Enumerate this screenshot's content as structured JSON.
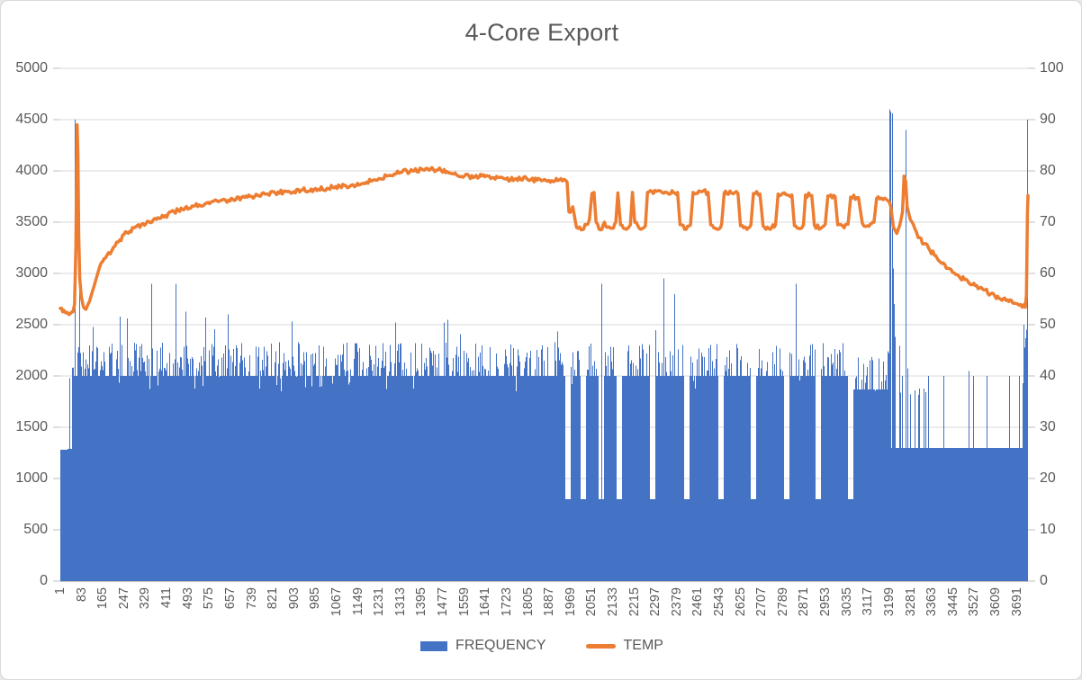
{
  "window": {
    "title": "4-Core Export"
  },
  "chart_data": {
    "type": "combo",
    "title": "4-Core Export",
    "grid": true,
    "legend_position": "bottom",
    "x_range": [
      1,
      3734
    ],
    "x_tick_labels": [
      1,
      83,
      165,
      247,
      329,
      411,
      493,
      575,
      657,
      739,
      821,
      903,
      985,
      1067,
      1149,
      1231,
      1313,
      1395,
      1477,
      1559,
      1641,
      1723,
      1805,
      1887,
      1969,
      2051,
      2133,
      2215,
      2297,
      2379,
      2461,
      2543,
      2625,
      2707,
      2789,
      2871,
      2953,
      3035,
      3117,
      3199,
      3281,
      3363,
      3445,
      3527,
      3609,
      3691
    ],
    "left_axis": {
      "title": "",
      "min": 0,
      "max": 5000,
      "step": 500,
      "tick_labels": [
        0,
        500,
        1000,
        1500,
        2000,
        2500,
        3000,
        3500,
        4000,
        4500,
        5000
      ]
    },
    "right_axis": {
      "title": "",
      "min": 0,
      "max": 100,
      "step": 10,
      "tick_labels": [
        0,
        10,
        20,
        30,
        40,
        50,
        60,
        70,
        80,
        90,
        100
      ]
    },
    "series": [
      {
        "name": "FREQUENCY",
        "type": "bar",
        "axis": "left",
        "color": "#4472C4",
        "description": "Dense per-sample CPU frequency bars (MHz). Encoded as base-level segments with spiky texture, periodic throttle dips to 800, and explicit major spikes.",
        "segments": [
          {
            "from": 1,
            "to": 29,
            "base": 1280,
            "p_hi": 0,
            "hi": [
              0,
              0
            ],
            "p_mid": 0,
            "mid": [
              0,
              0
            ],
            "p_notch": 0,
            "notch": 0
          },
          {
            "from": 30,
            "to": 45,
            "base": 1290,
            "p_hi": 0,
            "hi": [
              0,
              0
            ],
            "p_mid": 0,
            "mid": [
              0,
              0
            ],
            "p_notch": 0,
            "notch": 0
          },
          {
            "from": 46,
            "to": 1958,
            "base": 2000,
            "p_hi": 0.48,
            "hi": [
              40,
              330
            ],
            "p_mid": 0.032,
            "mid": [
              400,
              650
            ],
            "p_notch": 0.04,
            "notch": 150
          },
          {
            "from": 1959,
            "to": 3054,
            "base": 2000,
            "p_hi": 0.42,
            "hi": [
              40,
              320
            ],
            "p_mid": 0.022,
            "mid": [
              400,
              620
            ],
            "p_notch": 0.03,
            "notch": 140
          },
          {
            "from": 3055,
            "to": 3193,
            "base": 1870,
            "p_hi": 0.4,
            "hi": [
              60,
              340
            ],
            "p_mid": 0.015,
            "mid": [
              360,
              430
            ],
            "p_notch": 0.02,
            "notch": 100
          },
          {
            "from": 3194,
            "to": 3232,
            "base": 1300,
            "p_hi": 0.55,
            "hi": [
              400,
              1300
            ],
            "p_mid": 0.12,
            "mid": [
              1300,
              1700
            ],
            "p_notch": 0,
            "notch": 0
          },
          {
            "from": 3233,
            "to": 3340,
            "base": 1300,
            "p_hi": 0.2,
            "hi": [
              500,
              800
            ],
            "p_mid": 0.05,
            "mid": [
              900,
              1300
            ],
            "p_notch": 0,
            "notch": 0
          },
          {
            "from": 3341,
            "to": 3714,
            "base": 1300,
            "p_hi": 0.015,
            "hi": [
              600,
              750
            ],
            "p_mid": 0,
            "mid": [
              0,
              0
            ],
            "p_notch": 0,
            "notch": 0
          },
          {
            "from": 3715,
            "to": 3734,
            "base": 1300,
            "p_hi": 0.35,
            "hi": [
              500,
              800
            ],
            "p_mid": 0.15,
            "mid": [
              900,
              1200
            ],
            "p_notch": 0,
            "notch": 0
          }
        ],
        "major_spikes": [
          [
            36,
            1980
          ],
          [
            58,
            4500
          ],
          [
            77,
            3600
          ],
          [
            129,
            2480
          ],
          [
            233,
            2580
          ],
          [
            258,
            2560
          ],
          [
            355,
            2900
          ],
          [
            446,
            2900
          ],
          [
            563,
            2570
          ],
          [
            650,
            2600
          ],
          [
            1483,
            2520
          ],
          [
            1495,
            2550
          ],
          [
            2090,
            2900
          ],
          [
            2330,
            2950
          ],
          [
            2372,
            2800
          ],
          [
            2841,
            2900
          ],
          [
            3200,
            4600
          ],
          [
            3205,
            4580
          ],
          [
            3210,
            4560
          ],
          [
            3214,
            3050
          ],
          [
            3218,
            2700
          ],
          [
            3262,
            4400
          ],
          [
            3350,
            2000
          ],
          [
            3409,
            1980
          ],
          [
            3506,
            2050
          ],
          [
            3575,
            2000
          ],
          [
            3662,
            2000
          ],
          [
            3700,
            2000
          ],
          [
            3718,
            2500
          ],
          [
            3726,
            2100
          ],
          [
            3730,
            2450
          ],
          [
            3733,
            4500
          ]
        ],
        "dips": {
          "value": 800,
          "width": 22,
          "positions": [
            1960,
            2019,
            2088,
            2158,
            2286,
            2418,
            2550,
            2675,
            2804,
            2925,
            3050
          ]
        }
      },
      {
        "name": "TEMP",
        "type": "line",
        "axis": "right",
        "color": "#ED7D31",
        "stroke_width": 3.5,
        "noise": 0.45,
        "points": [
          [
            1,
            53.2
          ],
          [
            15,
            52.8
          ],
          [
            28,
            52.4
          ],
          [
            40,
            52.2
          ],
          [
            50,
            52.5
          ],
          [
            56,
            54
          ],
          [
            61,
            65
          ],
          [
            64,
            80
          ],
          [
            66,
            89
          ],
          [
            69,
            83
          ],
          [
            72,
            68
          ],
          [
            76,
            59
          ],
          [
            82,
            55.5
          ],
          [
            90,
            53.5
          ],
          [
            100,
            53
          ],
          [
            108,
            54
          ],
          [
            119,
            55.5
          ],
          [
            134,
            58
          ],
          [
            154,
            61.5
          ],
          [
            175,
            63
          ],
          [
            200,
            64.5
          ],
          [
            230,
            66.5
          ],
          [
            258,
            68
          ],
          [
            290,
            69
          ],
          [
            320,
            69.7
          ],
          [
            360,
            70.5
          ],
          [
            400,
            71
          ],
          [
            440,
            72
          ],
          [
            472,
            72.5
          ],
          [
            520,
            73.2
          ],
          [
            560,
            73.6
          ],
          [
            610,
            74
          ],
          [
            650,
            74.3
          ],
          [
            700,
            74.8
          ],
          [
            740,
            75
          ],
          [
            790,
            75.5
          ],
          [
            830,
            75.7
          ],
          [
            880,
            76
          ],
          [
            930,
            76.2
          ],
          [
            980,
            76.4
          ],
          [
            1030,
            76.6
          ],
          [
            1080,
            77
          ],
          [
            1130,
            77.3
          ],
          [
            1170,
            77.6
          ],
          [
            1200,
            78
          ],
          [
            1230,
            78.5
          ],
          [
            1260,
            79
          ],
          [
            1290,
            79.4
          ],
          [
            1320,
            79.8
          ],
          [
            1360,
            80
          ],
          [
            1400,
            80.2
          ],
          [
            1440,
            80.3
          ],
          [
            1470,
            80.1
          ],
          [
            1500,
            79.6
          ],
          [
            1530,
            79.2
          ],
          [
            1560,
            79
          ],
          [
            1600,
            78.9
          ],
          [
            1650,
            79
          ],
          [
            1690,
            78.7
          ],
          [
            1720,
            78.4
          ],
          [
            1760,
            78.5
          ],
          [
            1800,
            78.5
          ],
          [
            1840,
            78.2
          ],
          [
            1880,
            78
          ],
          [
            1920,
            78.1
          ],
          [
            1950,
            78.2
          ],
          [
            1956,
            77.8
          ],
          [
            1963,
            72
          ],
          [
            1978,
            73
          ],
          [
            1992,
            69
          ],
          [
            2010,
            68.5
          ],
          [
            2030,
            69.5
          ],
          [
            2042,
            70.5
          ],
          [
            2052,
            75.6
          ],
          [
            2060,
            75.8
          ],
          [
            2068,
            70
          ],
          [
            2085,
            68.5
          ],
          [
            2100,
            70
          ],
          [
            2112,
            69
          ],
          [
            2130,
            68.8
          ],
          [
            2144,
            70
          ],
          [
            2152,
            75.7
          ],
          [
            2162,
            69.5
          ],
          [
            2185,
            68.6
          ],
          [
            2200,
            69.5
          ],
          [
            2208,
            75.8
          ],
          [
            2217,
            70
          ],
          [
            2240,
            68.6
          ],
          [
            2258,
            69.3
          ],
          [
            2266,
            75.8
          ],
          [
            2300,
            76
          ],
          [
            2340,
            75.8
          ],
          [
            2382,
            75.8
          ],
          [
            2392,
            69.5
          ],
          [
            2415,
            68.6
          ],
          [
            2432,
            69.5
          ],
          [
            2442,
            75.8
          ],
          [
            2470,
            76
          ],
          [
            2500,
            75.8
          ],
          [
            2510,
            69.5
          ],
          [
            2535,
            68.6
          ],
          [
            2552,
            69.5
          ],
          [
            2562,
            75.7
          ],
          [
            2590,
            75.7
          ],
          [
            2615,
            75.6
          ],
          [
            2625,
            69.3
          ],
          [
            2650,
            68.6
          ],
          [
            2665,
            69.5
          ],
          [
            2675,
            75.6
          ],
          [
            2700,
            75.5
          ],
          [
            2712,
            69.3
          ],
          [
            2740,
            68.6
          ],
          [
            2760,
            69.5
          ],
          [
            2770,
            75.5
          ],
          [
            2800,
            75.4
          ],
          [
            2823,
            75.3
          ],
          [
            2833,
            69.3
          ],
          [
            2855,
            68.7
          ],
          [
            2868,
            69.5
          ],
          [
            2876,
            75.3
          ],
          [
            2900,
            75.2
          ],
          [
            2910,
            69.4
          ],
          [
            2935,
            68.8
          ],
          [
            2952,
            69.6
          ],
          [
            2962,
            75.1
          ],
          [
            2990,
            75
          ],
          [
            3000,
            69.5
          ],
          [
            3025,
            68.9
          ],
          [
            3040,
            69.6
          ],
          [
            3050,
            74.9
          ],
          [
            3080,
            74.8
          ],
          [
            3095,
            69.8
          ],
          [
            3120,
            69.2
          ],
          [
            3140,
            70
          ],
          [
            3150,
            74.6
          ],
          [
            3175,
            74.4
          ],
          [
            3193,
            74.2
          ],
          [
            3205,
            73
          ],
          [
            3215,
            69
          ],
          [
            3228,
            67.8
          ],
          [
            3240,
            69.5
          ],
          [
            3250,
            72
          ],
          [
            3256,
            79
          ],
          [
            3262,
            78
          ],
          [
            3268,
            73
          ],
          [
            3280,
            70.5
          ],
          [
            3310,
            67
          ],
          [
            3350,
            65
          ],
          [
            3390,
            62.5
          ],
          [
            3419,
            61
          ],
          [
            3455,
            59.8
          ],
          [
            3489,
            58.8
          ],
          [
            3520,
            57.8
          ],
          [
            3558,
            57
          ],
          [
            3590,
            56
          ],
          [
            3628,
            55
          ],
          [
            3660,
            54.5
          ],
          [
            3680,
            54.2
          ],
          [
            3700,
            53.8
          ],
          [
            3712,
            53.4
          ],
          [
            3720,
            54
          ],
          [
            3724,
            53.4
          ],
          [
            3728,
            56
          ],
          [
            3732,
            72
          ],
          [
            3734,
            75.2
          ]
        ]
      }
    ]
  },
  "legend": {
    "items": [
      {
        "label": "FREQUENCY",
        "swatch": "bar",
        "color": "#4472C4"
      },
      {
        "label": "TEMP",
        "swatch": "line",
        "color": "#ED7D31"
      }
    ]
  },
  "colors": {
    "frequency": "#4472C4",
    "temp": "#ED7D31",
    "gridline": "#D9D9D9",
    "axis_line": "#BFBFBF",
    "axis_text": "#595959",
    "title_text": "#595959",
    "chart_border": "#D9D9D9",
    "background": "#FFFFFF"
  }
}
